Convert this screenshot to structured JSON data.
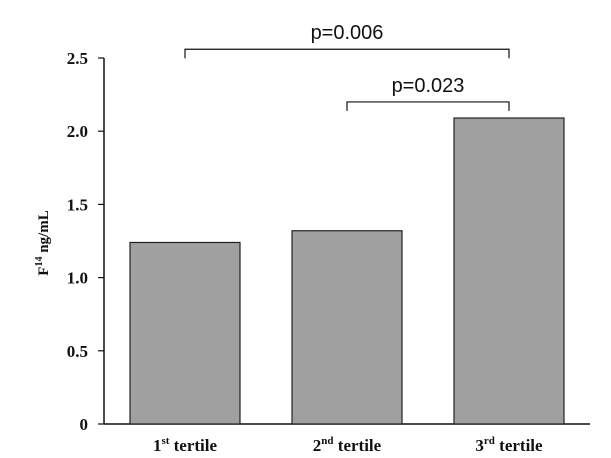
{
  "chart_data": {
    "type": "bar",
    "categories": [
      {
        "main": "1",
        "sup": "st",
        "rest": " tertile"
      },
      {
        "main": "2",
        "sup": "nd",
        "rest": " tertile"
      },
      {
        "main": "3",
        "sup": "rd",
        "rest": " tertile"
      }
    ],
    "values": [
      1.24,
      1.32,
      2.09
    ],
    "ylim": [
      0,
      2.5
    ],
    "yticks": [
      {
        "value": 0,
        "label": "0"
      },
      {
        "value": 0.5,
        "label": "0.5"
      },
      {
        "value": 1.0,
        "label": "1.0"
      },
      {
        "value": 1.5,
        "label": "1.5"
      },
      {
        "value": 2.0,
        "label": "2.0"
      },
      {
        "value": 2.5,
        "label": "2.5"
      }
    ],
    "ylabel": {
      "main": "F",
      "sup": "14",
      "rest": " ng/mL"
    },
    "xlabel": "",
    "title": "",
    "grid": false,
    "bar_color": "#a0a0a0",
    "bar_edge_color": "#222222",
    "annotations": [
      {
        "from": 0,
        "to": 2,
        "label": "p=0.006",
        "level": 2.56
      },
      {
        "from": 1,
        "to": 2,
        "label": "p=0.023",
        "level": 2.2
      }
    ]
  }
}
